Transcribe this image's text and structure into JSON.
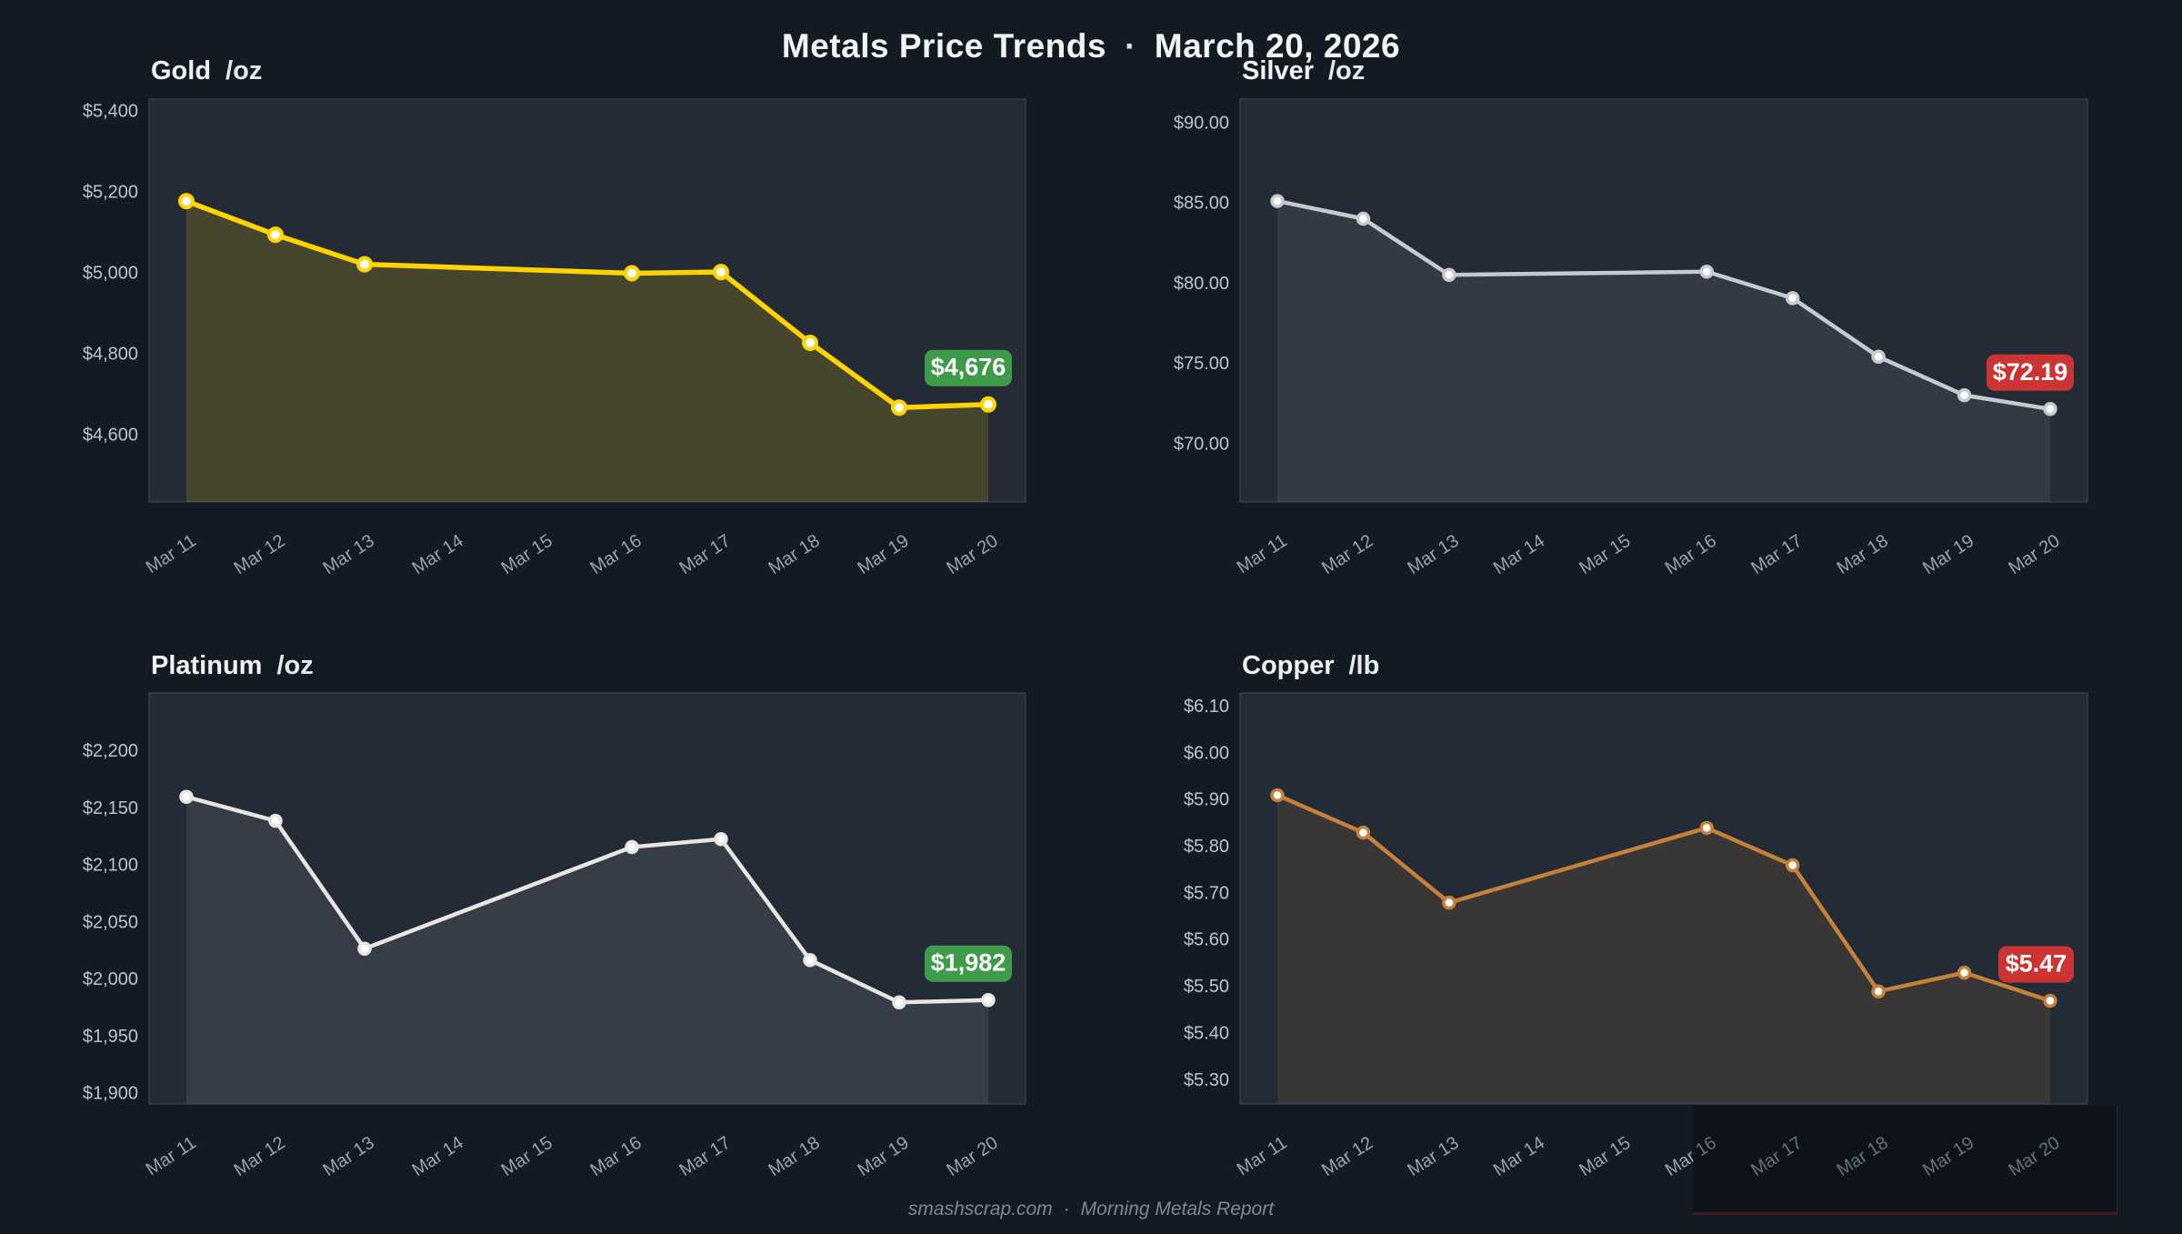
{
  "header": {
    "title": "Metals Price Trends",
    "separator": "·",
    "date": "March 20, 2026"
  },
  "footer": {
    "site": "smashscrap.com",
    "separator": "·",
    "label": "Morning Metals Report"
  },
  "colors": {
    "page_bg": "#141a23",
    "panel_bg": "#222b36",
    "panel_border": "#3f4a59",
    "y_tick_text": "#bcc3cc",
    "x_tick_text": "#99a2ad",
    "badge_green": "#3d9b4a",
    "badge_red": "#cc3333",
    "marker_fill": "#ffffff"
  },
  "x_categories": [
    "Mar 11",
    "Mar 12",
    "Mar 13",
    "Mar 14",
    "Mar 15",
    "Mar 16",
    "Mar 17",
    "Mar 18",
    "Mar 19",
    "Mar 20"
  ],
  "chart_data": [
    {
      "type": "area",
      "title": "Gold",
      "unit": "/oz",
      "line_color": "#ffd400",
      "fill_opacity": 0.16,
      "line_width": 5.5,
      "marker_radius": 7,
      "marker_stroke": 4,
      "badge": {
        "label": "$4,676",
        "color": "#3d9b4a"
      },
      "x": [
        "Mar 11",
        "Mar 12",
        "Mar 13",
        "Mar 16",
        "Mar 17",
        "Mar 18",
        "Mar 19",
        "Mar 20"
      ],
      "day_indices": [
        0,
        1,
        2,
        5,
        6,
        7,
        8,
        9
      ],
      "values": [
        5178,
        5095,
        5022,
        5000,
        5003,
        4828,
        4668,
        4676
      ],
      "y_ticks": [
        {
          "v": 5400,
          "label": "$5,400"
        },
        {
          "v": 5200,
          "label": "$5,200"
        },
        {
          "v": 5000,
          "label": "$5,000"
        },
        {
          "v": 4800,
          "label": "$4,800"
        },
        {
          "v": 4600,
          "label": "$4,600"
        }
      ],
      "ylim": [
        4435,
        5430
      ],
      "grid": false,
      "legend": "none"
    },
    {
      "type": "area",
      "title": "Silver",
      "unit": "/oz",
      "line_color": "#c6c9cd",
      "fill_opacity": 0.1,
      "line_width": 4.5,
      "marker_radius": 6,
      "marker_stroke": 3.5,
      "badge": {
        "label": "$72.19",
        "color": "#cc3333"
      },
      "x": [
        "Mar 11",
        "Mar 12",
        "Mar 13",
        "Mar 16",
        "Mar 17",
        "Mar 18",
        "Mar 19",
        "Mar 20"
      ],
      "day_indices": [
        0,
        1,
        2,
        5,
        6,
        7,
        8,
        9
      ],
      "values": [
        85.15,
        84.05,
        80.55,
        80.75,
        79.1,
        75.45,
        73.05,
        72.19
      ],
      "y_ticks": [
        {
          "v": 90,
          "label": "$90.00"
        },
        {
          "v": 85,
          "label": "$85.00"
        },
        {
          "v": 80,
          "label": "$80.00"
        },
        {
          "v": 75,
          "label": "$75.00"
        },
        {
          "v": 70,
          "label": "$70.00"
        }
      ],
      "ylim": [
        66.4,
        91.5
      ],
      "grid": false,
      "legend": "none"
    },
    {
      "type": "area",
      "title": "Platinum",
      "unit": "/oz",
      "line_color": "#e8e6e3",
      "fill_opacity": 0.1,
      "line_width": 4.5,
      "marker_radius": 6,
      "marker_stroke": 3.5,
      "badge": {
        "label": "$1,982",
        "color": "#3d9b4a"
      },
      "x": [
        "Mar 11",
        "Mar 12",
        "Mar 13",
        "Mar 16",
        "Mar 17",
        "Mar 18",
        "Mar 19",
        "Mar 20"
      ],
      "day_indices": [
        0,
        1,
        2,
        5,
        6,
        7,
        8,
        9
      ],
      "values": [
        2160,
        2139,
        2027,
        2116,
        2123,
        2017,
        1980,
        1982
      ],
      "y_ticks": [
        {
          "v": 2200,
          "label": "$2,200"
        },
        {
          "v": 2150,
          "label": "$2,150"
        },
        {
          "v": 2100,
          "label": "$2,100"
        },
        {
          "v": 2050,
          "label": "$2,050"
        },
        {
          "v": 2000,
          "label": "$2,000"
        },
        {
          "v": 1950,
          "label": "$1,950"
        },
        {
          "v": 1900,
          "label": "$1,900"
        }
      ],
      "ylim": [
        1891,
        2251
      ],
      "grid": false,
      "legend": "none"
    },
    {
      "type": "area",
      "title": "Copper",
      "unit": "/lb",
      "line_color": "#c5803a",
      "fill_opacity": 0.14,
      "line_width": 4.5,
      "marker_radius": 6,
      "marker_stroke": 3.5,
      "badge": {
        "label": "$5.47",
        "color": "#cc3333"
      },
      "x": [
        "Mar 11",
        "Mar 12",
        "Mar 13",
        "Mar 16",
        "Mar 17",
        "Mar 18",
        "Mar 19",
        "Mar 20"
      ],
      "day_indices": [
        0,
        1,
        2,
        5,
        6,
        7,
        8,
        9
      ],
      "values": [
        5.91,
        5.83,
        5.68,
        5.84,
        5.76,
        5.49,
        5.53,
        5.47
      ],
      "y_ticks": [
        {
          "v": 6.1,
          "label": "$6.10"
        },
        {
          "v": 6.0,
          "label": "$6.00"
        },
        {
          "v": 5.9,
          "label": "$5.90"
        },
        {
          "v": 5.8,
          "label": "$5.80"
        },
        {
          "v": 5.7,
          "label": "$5.70"
        },
        {
          "v": 5.6,
          "label": "$5.60"
        },
        {
          "v": 5.5,
          "label": "$5.50"
        },
        {
          "v": 5.4,
          "label": "$5.40"
        },
        {
          "v": 5.3,
          "label": "$5.30"
        }
      ],
      "ylim": [
        5.249,
        6.129
      ],
      "grid": false,
      "legend": "none"
    }
  ]
}
